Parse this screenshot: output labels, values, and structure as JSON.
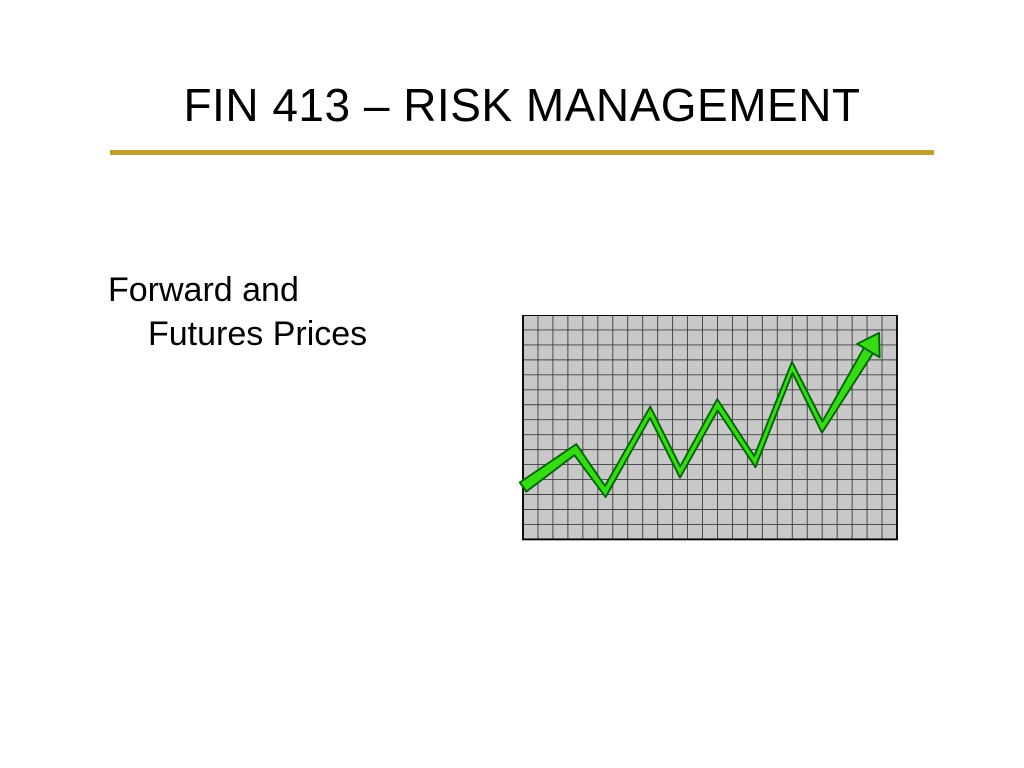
{
  "slide": {
    "title": "FIN 413 – RISK MANAGEMENT",
    "subtitle_line1": "Forward and",
    "subtitle_line2": "Futures Prices",
    "title_fontsize": 46,
    "subtitle_fontsize": 34,
    "title_color": "#000000",
    "subtitle_color": "#000000",
    "rule_color": "#c0a030",
    "rule_thickness": 5,
    "background_color": "#ffffff"
  },
  "chart": {
    "type": "line",
    "grid": {
      "cols": 25,
      "rows": 15,
      "cell_size": 16,
      "background_color": "#c8c8c8",
      "grid_line_color": "#404040",
      "grid_line_width": 1,
      "border_color": "#000000",
      "border_width": 2
    },
    "line": {
      "points": [
        [
          0,
          11.5
        ],
        [
          3.5,
          9.0
        ],
        [
          5.5,
          11.8
        ],
        [
          8.5,
          6.5
        ],
        [
          10.5,
          10.5
        ],
        [
          13.0,
          6.0
        ],
        [
          15.5,
          9.8
        ],
        [
          18.0,
          3.5
        ],
        [
          20.0,
          7.5
        ],
        [
          23.8,
          1.2
        ]
      ],
      "stroke_color": "#006400",
      "stroke_width": 2,
      "fill_color": "#33dd11",
      "band_thickness": 12,
      "arrowhead": true,
      "arrowhead_fill": "#33dd11",
      "arrowhead_stroke": "#006400"
    }
  }
}
